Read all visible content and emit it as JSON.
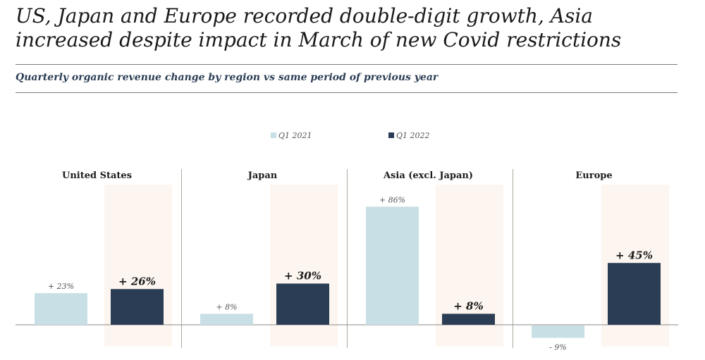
{
  "title": "US, Japan and Europe recorded double-digit growth, Asia increased despite impact in March of new Covid restrictions",
  "subtitle": "Quarterly organic revenue change by region vs same period of previous year",
  "chart_data": {
    "type": "bar",
    "categories": [
      "United States",
      "Japan",
      "Asia (excl. Japan)",
      "Europe"
    ],
    "series": [
      {
        "name": "Q1 2021",
        "values": [
          23,
          8,
          86,
          -9
        ],
        "labels": [
          "+ 23%",
          "+ 8%",
          "+ 86%",
          "- 9%"
        ],
        "color": "#c9dfe6"
      },
      {
        "name": "Q1 2022",
        "values": [
          26,
          30,
          8,
          45
        ],
        "labels": [
          "+ 26%",
          "+ 30%",
          "+ 8%",
          "+ 45%"
        ],
        "color": "#2b3d54"
      }
    ],
    "ylabel": "",
    "legend": "top-center",
    "highlight_series": "Q1 2022",
    "highlight_color": "#fdf6f0"
  }
}
